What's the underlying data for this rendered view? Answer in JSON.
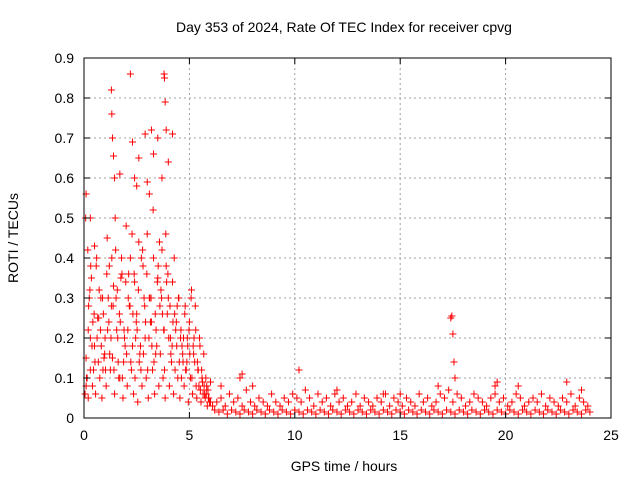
{
  "chart_data": {
    "type": "scatter",
    "title": "Day 353 of 2024, Rate Of TEC Index for receiver cpvg",
    "xlabel": "GPS time / hours",
    "ylabel": "ROTI / TECUs",
    "xlim": [
      0,
      25
    ],
    "ylim": [
      0,
      0.9
    ],
    "xticks": [
      0,
      5,
      10,
      15,
      20,
      25
    ],
    "yticks": [
      0,
      0.1,
      0.2,
      0.3,
      0.4,
      0.5,
      0.6,
      0.7,
      0.8,
      0.9
    ],
    "grid": true,
    "marker": "+",
    "color": "#ff0000",
    "series": [
      {
        "name": "ROTI",
        "x": [
          0.05,
          0.1,
          0.15,
          0.2,
          0.25,
          0.3,
          0.35,
          0.4,
          0.5,
          0.6,
          0.7,
          0.8,
          0.9,
          1.0,
          1.1,
          1.2,
          1.3,
          1.35,
          1.4,
          1.5,
          1.6,
          1.7,
          1.8,
          1.9,
          2.0,
          2.1,
          2.2,
          2.3,
          2.4,
          2.5,
          2.6,
          2.7,
          2.8,
          2.9,
          3.0,
          3.1,
          3.2,
          3.3,
          3.4,
          3.5,
          3.6,
          3.7,
          3.8,
          3.9,
          4.0,
          4.1,
          4.2,
          4.3,
          4.4,
          4.5,
          4.6,
          4.7,
          4.8,
          4.9,
          5.0,
          5.1,
          5.2,
          5.3,
          5.4,
          5.5,
          5.6,
          5.7,
          5.8,
          5.9,
          6.0,
          0.1,
          0.2,
          0.3,
          0.45,
          0.55,
          0.65,
          0.75,
          0.85,
          0.95,
          1.05,
          1.15,
          1.25,
          1.45,
          1.55,
          1.65,
          1.75,
          1.85,
          1.95,
          2.05,
          2.15,
          2.25,
          2.35,
          2.45,
          2.55,
          2.65,
          2.75,
          2.85,
          2.95,
          3.05,
          3.15,
          3.25,
          3.35,
          3.45,
          3.55,
          3.65,
          3.75,
          3.85,
          3.95,
          4.05,
          4.15,
          4.25,
          4.35,
          4.45,
          4.55,
          4.65,
          4.75,
          4.85,
          4.95,
          5.05,
          5.15,
          5.25,
          5.35,
          5.45,
          5.55,
          5.65,
          5.75,
          5.85,
          5.95,
          0.08,
          0.18,
          0.28,
          0.38,
          0.48,
          0.58,
          0.68,
          0.78,
          0.88,
          0.98,
          1.08,
          1.18,
          1.28,
          1.38,
          1.48,
          1.58,
          1.68,
          1.78,
          1.88,
          1.98,
          2.08,
          2.18,
          2.28,
          2.38,
          2.48,
          2.58,
          2.68,
          2.78,
          2.88,
          2.98,
          3.08,
          3.18,
          3.28,
          3.38,
          3.48,
          3.58,
          3.68,
          3.78,
          3.88,
          3.98,
          4.08,
          4.18,
          4.28,
          4.38,
          4.48,
          4.58,
          4.68,
          4.78,
          4.88,
          4.98,
          5.08,
          5.18,
          5.28,
          5.38,
          5.48,
          5.58,
          5.68,
          5.78,
          5.88,
          0.12,
          0.22,
          0.32,
          0.42,
          0.52,
          0.62,
          0.72,
          0.82,
          0.92,
          1.02,
          1.12,
          1.22,
          1.32,
          1.42,
          1.52,
          1.62,
          1.72,
          1.82,
          1.92,
          2.02,
          2.12,
          2.22,
          2.32,
          2.42,
          2.52,
          2.62,
          2.72,
          2.82,
          2.92,
          3.02,
          3.12,
          3.22,
          3.32,
          3.42,
          3.52,
          3.62,
          3.72,
          3.82,
          3.92,
          4.02,
          4.12,
          4.22,
          4.32,
          4.42,
          4.52,
          4.62,
          4.72,
          4.82,
          4.92,
          5.02,
          5.12,
          5.22,
          5.32,
          5.42,
          5.52,
          5.62,
          5.72,
          5.82,
          5.92,
          1.3,
          1.32,
          1.35,
          1.4,
          1.45,
          1.7,
          2.2,
          2.3,
          2.4,
          2.5,
          2.6,
          2.9,
          3.0,
          3.1,
          3.2,
          3.3,
          3.5,
          3.7,
          3.8,
          3.82,
          3.85,
          3.9,
          4.0,
          4.2,
          0.1,
          0.3,
          0.5,
          6.1,
          6.3,
          6.5,
          6.7,
          6.9,
          7.1,
          7.3,
          7.5,
          7.7,
          7.9,
          8.1,
          8.3,
          8.5,
          8.7,
          8.9,
          9.1,
          9.3,
          9.5,
          9.7,
          9.9,
          10.1,
          10.3,
          10.5,
          10.7,
          10.9,
          11.1,
          11.3,
          11.5,
          11.7,
          11.9,
          12.1,
          12.3,
          12.5,
          12.7,
          12.9,
          13.1,
          13.3,
          13.5,
          13.7,
          13.9,
          14.1,
          14.3,
          14.5,
          14.7,
          14.9,
          15.1,
          15.3,
          15.5,
          15.7,
          15.9,
          16.1,
          16.3,
          16.5,
          16.7,
          16.9,
          17.1,
          17.3,
          17.5,
          17.7,
          17.9,
          18.1,
          18.3,
          18.5,
          18.7,
          18.9,
          19.1,
          19.3,
          19.5,
          19.7,
          19.9,
          20.1,
          20.3,
          20.5,
          20.7,
          20.9,
          21.1,
          21.3,
          21.5,
          21.7,
          21.9,
          22.1,
          22.3,
          22.5,
          22.7,
          22.9,
          23.1,
          23.3,
          23.5,
          23.7,
          23.9,
          6.2,
          6.4,
          6.6,
          6.8,
          7.0,
          7.2,
          7.4,
          7.6,
          7.8,
          8.0,
          8.2,
          8.4,
          8.6,
          8.8,
          9.0,
          9.2,
          9.4,
          9.6,
          9.8,
          10.0,
          10.2,
          10.4,
          10.6,
          10.8,
          11.0,
          11.2,
          11.4,
          11.6,
          11.8,
          12.0,
          12.2,
          12.4,
          12.6,
          12.8,
          13.0,
          13.2,
          13.4,
          13.6,
          13.8,
          14.0,
          14.2,
          14.4,
          14.6,
          14.8,
          15.0,
          15.2,
          15.4,
          15.6,
          15.8,
          16.0,
          16.2,
          16.4,
          16.6,
          16.8,
          17.0,
          17.2,
          17.4,
          17.6,
          17.8,
          18.0,
          18.2,
          18.4,
          18.6,
          18.8,
          19.0,
          19.2,
          19.4,
          19.6,
          19.8,
          20.0,
          20.2,
          20.4,
          20.6,
          20.8,
          21.0,
          21.2,
          21.4,
          21.6,
          21.8,
          22.0,
          22.2,
          22.4,
          22.6,
          22.8,
          23.0,
          23.2,
          23.4,
          23.6,
          23.8,
          24.0,
          6.0,
          6.5,
          7.4,
          7.5,
          8.0,
          10.2,
          12.0,
          15.0,
          17.4,
          17.45,
          17.5,
          17.55,
          17.6,
          16.8,
          19.5,
          19.6,
          20.6,
          22.9,
          23.6,
          14.2
        ],
        "y": [
          0.06,
          0.15,
          0.1,
          0.22,
          0.3,
          0.12,
          0.35,
          0.08,
          0.18,
          0.4,
          0.25,
          0.3,
          0.12,
          0.2,
          0.45,
          0.38,
          0.28,
          0.15,
          0.33,
          0.42,
          0.2,
          0.1,
          0.36,
          0.22,
          0.48,
          0.3,
          0.4,
          0.18,
          0.34,
          0.26,
          0.44,
          0.12,
          0.38,
          0.2,
          0.46,
          0.3,
          0.24,
          0.4,
          0.16,
          0.35,
          0.28,
          0.42,
          0.22,
          0.38,
          0.3,
          0.2,
          0.34,
          0.26,
          0.18,
          0.3,
          0.22,
          0.14,
          0.28,
          0.2,
          0.24,
          0.32,
          0.16,
          0.22,
          0.12,
          0.18,
          0.1,
          0.08,
          0.06,
          0.05,
          0.04,
          0.08,
          0.05,
          0.2,
          0.12,
          0.06,
          0.25,
          0.1,
          0.05,
          0.15,
          0.08,
          0.3,
          0.12,
          0.06,
          0.22,
          0.1,
          0.35,
          0.05,
          0.18,
          0.08,
          0.28,
          0.12,
          0.06,
          0.2,
          0.04,
          0.16,
          0.08,
          0.3,
          0.1,
          0.05,
          0.24,
          0.12,
          0.06,
          0.18,
          0.08,
          0.32,
          0.1,
          0.05,
          0.26,
          0.08,
          0.14,
          0.06,
          0.22,
          0.1,
          0.05,
          0.18,
          0.08,
          0.12,
          0.04,
          0.1,
          0.06,
          0.14,
          0.05,
          0.08,
          0.04,
          0.06,
          0.05,
          0.03,
          0.04,
          0.5,
          0.42,
          0.32,
          0.18,
          0.26,
          0.38,
          0.14,
          0.22,
          0.3,
          0.16,
          0.36,
          0.24,
          0.2,
          0.28,
          0.5,
          0.32,
          0.26,
          0.4,
          0.14,
          0.34,
          0.22,
          0.28,
          0.46,
          0.36,
          0.24,
          0.32,
          0.18,
          0.42,
          0.28,
          0.36,
          0.2,
          0.3,
          0.52,
          0.26,
          0.34,
          0.44,
          0.3,
          0.22,
          0.46,
          0.36,
          0.28,
          0.18,
          0.4,
          0.24,
          0.3,
          0.2,
          0.16,
          0.26,
          0.14,
          0.22,
          0.3,
          0.18,
          0.28,
          0.14,
          0.2,
          0.12,
          0.16,
          0.1,
          0.07,
          0.1,
          0.28,
          0.38,
          0.24,
          0.14,
          0.2,
          0.32,
          0.18,
          0.26,
          0.12,
          0.22,
          0.16,
          0.4,
          0.12,
          0.3,
          0.14,
          0.24,
          0.1,
          0.2,
          0.16,
          0.36,
          0.14,
          0.26,
          0.1,
          0.22,
          0.14,
          0.4,
          0.16,
          0.24,
          0.12,
          0.3,
          0.18,
          0.14,
          0.22,
          0.38,
          0.16,
          0.26,
          0.12,
          0.34,
          0.2,
          0.16,
          0.24,
          0.12,
          0.28,
          0.14,
          0.1,
          0.2,
          0.12,
          0.18,
          0.16,
          0.1,
          0.2,
          0.08,
          0.12,
          0.07,
          0.09,
          0.06,
          0.08,
          0.05,
          0.82,
          0.76,
          0.7,
          0.655,
          0.6,
          0.61,
          0.86,
          0.69,
          0.6,
          0.58,
          0.65,
          0.71,
          0.59,
          0.56,
          0.72,
          0.66,
          0.7,
          0.6,
          0.86,
          0.85,
          0.79,
          0.72,
          0.64,
          0.71,
          0.56,
          0.5,
          0.43,
          0.03,
          0.04,
          0.05,
          0.03,
          0.06,
          0.04,
          0.05,
          0.03,
          0.07,
          0.04,
          0.03,
          0.05,
          0.04,
          0.03,
          0.06,
          0.04,
          0.03,
          0.05,
          0.04,
          0.06,
          0.05,
          0.04,
          0.07,
          0.05,
          0.03,
          0.06,
          0.04,
          0.05,
          0.03,
          0.06,
          0.04,
          0.05,
          0.03,
          0.04,
          0.06,
          0.03,
          0.05,
          0.04,
          0.03,
          0.05,
          0.04,
          0.06,
          0.03,
          0.05,
          0.04,
          0.03,
          0.05,
          0.04,
          0.03,
          0.06,
          0.04,
          0.05,
          0.03,
          0.04,
          0.06,
          0.05,
          0.07,
          0.04,
          0.06,
          0.05,
          0.03,
          0.04,
          0.06,
          0.05,
          0.04,
          0.03,
          0.05,
          0.06,
          0.04,
          0.05,
          0.03,
          0.04,
          0.06,
          0.05,
          0.03,
          0.04,
          0.05,
          0.04,
          0.06,
          0.03,
          0.05,
          0.04,
          0.03,
          0.05,
          0.04,
          0.06,
          0.03,
          0.05,
          0.04,
          0.03,
          0.02,
          0.015,
          0.02,
          0.01,
          0.02,
          0.015,
          0.01,
          0.02,
          0.015,
          0.01,
          0.02,
          0.015,
          0.01,
          0.02,
          0.015,
          0.01,
          0.02,
          0.015,
          0.01,
          0.02,
          0.015,
          0.01,
          0.02,
          0.015,
          0.01,
          0.02,
          0.015,
          0.01,
          0.02,
          0.015,
          0.01,
          0.02,
          0.015,
          0.01,
          0.02,
          0.015,
          0.01,
          0.02,
          0.015,
          0.01,
          0.02,
          0.015,
          0.01,
          0.02,
          0.015,
          0.01,
          0.02,
          0.015,
          0.01,
          0.02,
          0.015,
          0.01,
          0.02,
          0.015,
          0.01,
          0.02,
          0.015,
          0.01,
          0.02,
          0.015,
          0.01,
          0.02,
          0.015,
          0.01,
          0.02,
          0.015,
          0.01,
          0.02,
          0.015,
          0.01,
          0.02,
          0.015,
          0.01,
          0.02,
          0.015,
          0.01,
          0.02,
          0.015,
          0.01,
          0.02,
          0.015,
          0.01,
          0.02,
          0.015,
          0.01,
          0.02,
          0.015,
          0.01,
          0.02,
          0.015,
          0.09,
          0.08,
          0.1,
          0.11,
          0.08,
          0.12,
          0.07,
          0.06,
          0.25,
          0.255,
          0.21,
          0.14,
          0.1,
          0.08,
          0.08,
          0.09,
          0.08,
          0.09,
          0.07,
          0.06
        ]
      }
    ]
  }
}
